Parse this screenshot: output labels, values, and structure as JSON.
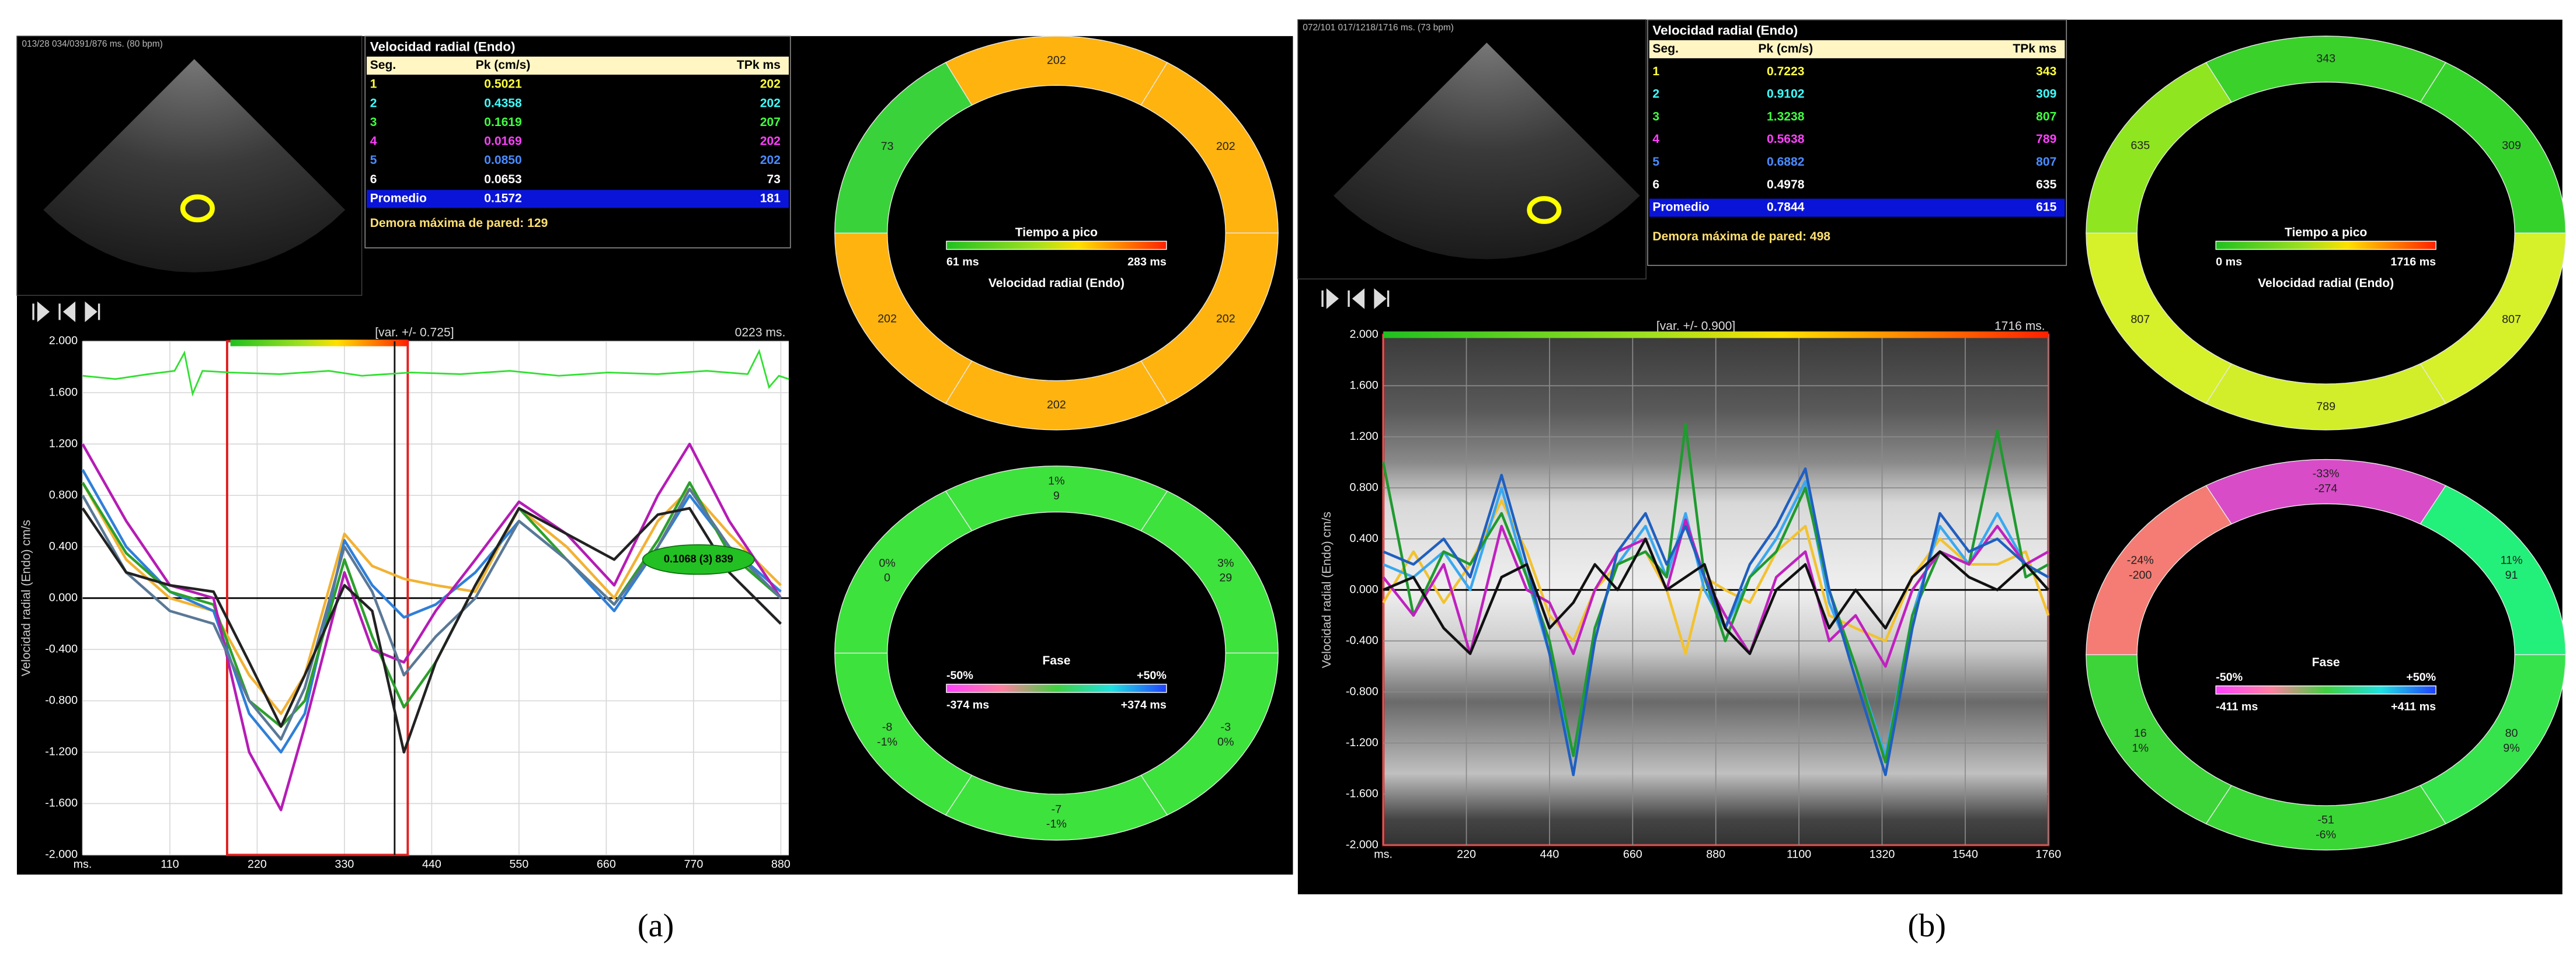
{
  "panels": [
    {
      "caption": "(a)",
      "ultrasound": {
        "header": "013/28 034/0391/876 ms. (80 bpm)"
      },
      "table": {
        "title": "Velocidad radial (Endo)",
        "columns": [
          "Seg.",
          "Pk (cm/s)",
          "TPk ms"
        ],
        "rows": [
          {
            "cells": [
              "1",
              "0.5021",
              "202"
            ],
            "color": "#ffff40"
          },
          {
            "cells": [
              "2",
              "0.4358",
              "202"
            ],
            "color": "#40ffff"
          },
          {
            "cells": [
              "3",
              "0.1619",
              "207"
            ],
            "color": "#40ff40"
          },
          {
            "cells": [
              "4",
              "0.0169",
              "202"
            ],
            "color": "#ff40ff"
          },
          {
            "cells": [
              "5",
              "0.0850",
              "202"
            ],
            "color": "#4a8cff"
          },
          {
            "cells": [
              "6",
              "0.0653",
              "73"
            ],
            "color": "#ffffff"
          }
        ],
        "average": {
          "cells": [
            "Promedio",
            "0.1572",
            "181"
          ]
        },
        "note": "Demora máxima de pared: 129"
      },
      "chart": {
        "type": "line",
        "header_left": "[var. +/- 0.725]",
        "header_right": "0223 ms.",
        "y_label": "Velocidad radial (Endo)  cm/s",
        "annotation": "0.1068  (3)  839",
        "x": [
          0,
          55,
          110,
          165,
          210,
          250,
          280,
          330,
          365,
          405,
          445,
          495,
          550,
          610,
          670,
          725,
          765,
          815,
          880
        ],
        "xlim": [
          0,
          890
        ],
        "xticks": [
          {
            "value": 0,
            "label": "ms."
          },
          110,
          220,
          330,
          440,
          550,
          660,
          770,
          880
        ],
        "ylim": [
          -2,
          2
        ],
        "yticks": [
          {
            "value": -2,
            "label": "-2.000"
          },
          {
            "value": -1.6,
            "label": "-1.600"
          },
          {
            "value": -1.2,
            "label": "-1.200"
          },
          {
            "value": -0.8,
            "label": "-0.800"
          },
          {
            "value": -0.4,
            "label": "-0.400"
          },
          {
            "value": 0,
            "label": "0.000"
          },
          {
            "value": 0.4,
            "label": "0.400"
          },
          {
            "value": 0.8,
            "label": "0.800"
          },
          {
            "value": 1.2,
            "label": "1.200"
          },
          {
            "value": 1.6,
            "label": "1.600"
          },
          {
            "value": 2,
            "label": "2.000"
          }
        ],
        "grid": true,
        "series": [
          {
            "color": "#f2b233",
            "values": [
              0.9,
              0.3,
              0.0,
              -0.1,
              -0.6,
              -0.9,
              -0.6,
              0.5,
              0.25,
              0.15,
              0.1,
              0.05,
              0.7,
              0.4,
              0.0,
              0.6,
              0.85,
              0.5,
              0.1
            ]
          },
          {
            "color": "#2f7fd8",
            "values": [
              1.0,
              0.4,
              0.05,
              -0.1,
              -0.9,
              -1.2,
              -0.9,
              0.45,
              0.1,
              -0.15,
              -0.05,
              0.2,
              0.6,
              0.3,
              -0.1,
              0.4,
              0.8,
              0.4,
              0.05
            ]
          },
          {
            "color": "#2ca02c",
            "values": [
              0.9,
              0.35,
              0.05,
              -0.05,
              -0.8,
              -1.0,
              -0.8,
              0.3,
              -0.3,
              -0.85,
              -0.5,
              0.1,
              0.7,
              0.3,
              -0.05,
              0.45,
              0.9,
              0.35,
              0.0
            ]
          },
          {
            "color": "#b51cb5",
            "values": [
              1.2,
              0.6,
              0.1,
              0.0,
              -1.2,
              -1.65,
              -1.0,
              0.2,
              -0.4,
              -0.5,
              -0.1,
              0.3,
              0.75,
              0.5,
              0.1,
              0.8,
              1.2,
              0.6,
              0.0
            ]
          },
          {
            "color": "#5a7896",
            "values": [
              0.8,
              0.2,
              -0.1,
              -0.2,
              -0.8,
              -1.1,
              -0.7,
              0.4,
              0.05,
              -0.6,
              -0.3,
              0.0,
              0.6,
              0.3,
              -0.05,
              0.4,
              0.85,
              0.4,
              0.0
            ]
          },
          {
            "color": "#222222",
            "values": [
              0.7,
              0.2,
              0.1,
              0.05,
              -0.5,
              -1.0,
              -0.6,
              0.1,
              -0.1,
              -1.2,
              -0.5,
              0.1,
              0.7,
              0.5,
              0.3,
              0.65,
              0.7,
              0.2,
              -0.2
            ]
          }
        ]
      },
      "ring_tpk": {
        "title": "Tiempo a pico",
        "min_label": "61 ms",
        "max_label": "283 ms",
        "subtitle": "Velocidad radial (Endo)",
        "segments": [
          {
            "lines": [
              "202"
            ],
            "color": "#ffb30f"
          },
          {
            "lines": [
              "202"
            ],
            "color": "#ffb30f"
          },
          {
            "lines": [
              "202"
            ],
            "color": "#ffb30f"
          },
          {
            "lines": [
              "202"
            ],
            "color": "#ffb30f"
          },
          {
            "lines": [
              "202"
            ],
            "color": "#ffb30f"
          },
          {
            "lines": [
              "73"
            ],
            "color": "#3ad23a"
          }
        ]
      },
      "ring_phase": {
        "title": "Fase",
        "neg_label": "-50%",
        "pos_label": "+50%",
        "min_label": "-374 ms",
        "max_label": "+374 ms",
        "segments": [
          {
            "lines": [
              "1%",
              "9"
            ],
            "color": "#3de23d"
          },
          {
            "lines": [
              "3%",
              "29"
            ],
            "color": "#3de23d"
          },
          {
            "lines": [
              "-3",
              "0%"
            ],
            "color": "#3de23d"
          },
          {
            "lines": [
              "-7",
              "-1%"
            ],
            "color": "#3de23d"
          },
          {
            "lines": [
              "-8",
              "-1%"
            ],
            "color": "#3de23d"
          },
          {
            "lines": [
              "0%",
              "0"
            ],
            "color": "#3de23d"
          }
        ]
      }
    },
    {
      "caption": "(b)",
      "ultrasound": {
        "header": "072/101 017/1218/1716 ms. (73 bpm)"
      },
      "table": {
        "title": "Velocidad radial (Endo)",
        "columns": [
          "Seg.",
          "Pk (cm/s)",
          "TPk ms"
        ],
        "rows": [
          {
            "cells": [
              "1",
              "0.7223",
              "343"
            ],
            "color": "#ffff40"
          },
          {
            "cells": [
              "2",
              "0.9102",
              "309"
            ],
            "color": "#40ffff"
          },
          {
            "cells": [
              "3",
              "1.3238",
              "807"
            ],
            "color": "#40ff40"
          },
          {
            "cells": [
              "4",
              "0.5638",
              "789"
            ],
            "color": "#ff40ff"
          },
          {
            "cells": [
              "5",
              "0.6882",
              "807"
            ],
            "color": "#4a8cff"
          },
          {
            "cells": [
              "6",
              "0.4978",
              "635"
            ],
            "color": "#ffffff"
          }
        ],
        "average": {
          "cells": [
            "Promedio",
            "0.7844",
            "615"
          ]
        },
        "note": "Demora máxima de pared: 498"
      },
      "chart": {
        "type": "line",
        "header_left": "[var. +/- 0.900]",
        "header_right": "1716 ms.",
        "y_label": "Velocidad radial (Endo)  cm/s",
        "x": [
          0,
          80,
          160,
          230,
          313,
          380,
          440,
          503,
          560,
          620,
          694,
          750,
          800,
          850,
          905,
          970,
          1040,
          1117,
          1180,
          1250,
          1329,
          1400,
          1473,
          1550,
          1625,
          1700,
          1760
        ],
        "xlim": [
          0,
          1760
        ],
        "xticks": [
          {
            "value": 0,
            "label": "ms."
          },
          220,
          440,
          660,
          880,
          1100,
          1320,
          1540,
          1760
        ],
        "ylim": [
          -2,
          2
        ],
        "yticks": [
          {
            "value": -2,
            "label": "-2.000"
          },
          {
            "value": -1.6,
            "label": "-1.600"
          },
          {
            "value": -1.2,
            "label": "-1.200"
          },
          {
            "value": -0.8,
            "label": "-0.800"
          },
          {
            "value": -0.4,
            "label": "-0.400"
          },
          {
            "value": 0,
            "label": "0.000"
          },
          {
            "value": 0.4,
            "label": "0.400"
          },
          {
            "value": 0.8,
            "label": "0.800"
          },
          {
            "value": 1.2,
            "label": "1.200"
          },
          {
            "value": 1.6,
            "label": "1.600"
          },
          {
            "value": 2,
            "label": "2.000"
          }
        ],
        "grid": true,
        "series": [
          {
            "color": "#f2c230",
            "values": [
              -0.1,
              0.3,
              -0.1,
              0.2,
              0.7,
              0.3,
              -0.2,
              -0.4,
              0.0,
              0.2,
              0.3,
              0.0,
              -0.5,
              0.1,
              0.0,
              -0.1,
              0.3,
              0.5,
              -0.2,
              -0.3,
              -0.4,
              0.1,
              0.4,
              0.2,
              0.2,
              0.3,
              -0.2
            ]
          },
          {
            "color": "#3aa8f0",
            "values": [
              0.2,
              0.1,
              0.3,
              0.0,
              0.8,
              0.1,
              -0.5,
              -1.3,
              -0.3,
              0.2,
              0.5,
              0.1,
              0.6,
              0.0,
              -0.3,
              0.1,
              0.4,
              0.85,
              -0.1,
              -0.6,
              -1.3,
              -0.2,
              0.5,
              0.2,
              0.6,
              0.2,
              0.1
            ]
          },
          {
            "color": "#1f9a2f",
            "values": [
              1.0,
              -0.2,
              0.3,
              0.2,
              0.6,
              0.1,
              -0.4,
              -1.3,
              -0.3,
              0.2,
              0.3,
              0.1,
              1.3,
              0.1,
              -0.4,
              0.1,
              0.3,
              0.8,
              0.0,
              -0.6,
              -1.35,
              -0.2,
              0.3,
              0.2,
              1.25,
              0.1,
              0.2
            ]
          },
          {
            "color": "#c020c0",
            "values": [
              0.1,
              -0.2,
              0.2,
              -0.5,
              0.5,
              0.0,
              -0.1,
              -0.5,
              0.0,
              0.3,
              0.4,
              0.0,
              0.55,
              0.1,
              -0.2,
              -0.5,
              0.1,
              0.3,
              -0.4,
              -0.2,
              -0.6,
              0.0,
              0.3,
              0.2,
              0.5,
              0.2,
              0.3
            ]
          },
          {
            "color": "#1f5fc0",
            "values": [
              0.3,
              0.2,
              0.4,
              0.1,
              0.9,
              0.2,
              -0.5,
              -1.45,
              -0.4,
              0.3,
              0.6,
              0.2,
              0.5,
              0.1,
              -0.3,
              0.2,
              0.5,
              0.95,
              0.0,
              -0.7,
              -1.45,
              -0.3,
              0.6,
              0.3,
              0.4,
              0.2,
              0.1
            ]
          },
          {
            "color": "#111111",
            "values": [
              0.0,
              0.1,
              -0.3,
              -0.5,
              0.1,
              0.2,
              -0.3,
              -0.1,
              0.2,
              0.0,
              0.4,
              0.0,
              0.1,
              0.2,
              -0.3,
              -0.5,
              0.0,
              0.2,
              -0.3,
              0.0,
              -0.3,
              0.1,
              0.3,
              0.1,
              0.0,
              0.2,
              0.0
            ]
          }
        ]
      },
      "ring_tpk": {
        "title": "Tiempo a pico",
        "min_label": "0 ms",
        "max_label": "1716 ms",
        "subtitle": "Velocidad radial (Endo)",
        "segments": [
          {
            "lines": [
              "343"
            ],
            "color": "#3ad12a"
          },
          {
            "lines": [
              "309"
            ],
            "color": "#36d22c"
          },
          {
            "lines": [
              "807"
            ],
            "color": "#d6f02a"
          },
          {
            "lines": [
              "789"
            ],
            "color": "#d2ee2a"
          },
          {
            "lines": [
              "807"
            ],
            "color": "#d6f02a"
          },
          {
            "lines": [
              "635"
            ],
            "color": "#8fe51f"
          }
        ]
      },
      "ring_phase": {
        "title": "Fase",
        "neg_label": "-50%",
        "pos_label": "+50%",
        "min_label": "-411 ms",
        "max_label": "+411 ms",
        "segments": [
          {
            "lines": [
              "-33%",
              "-274"
            ],
            "color": "#d84cc8"
          },
          {
            "lines": [
              "11%",
              "91"
            ],
            "color": "#22f07a"
          },
          {
            "lines": [
              "80",
              "9%"
            ],
            "color": "#36e34c"
          },
          {
            "lines": [
              "-51",
              "-6%"
            ],
            "color": "#3ad636"
          },
          {
            "lines": [
              "16",
              "1%"
            ],
            "color": "#3cd438"
          },
          {
            "lines": [
              "-24%",
              "-200"
            ],
            "color": "#f47c74"
          }
        ]
      }
    }
  ]
}
